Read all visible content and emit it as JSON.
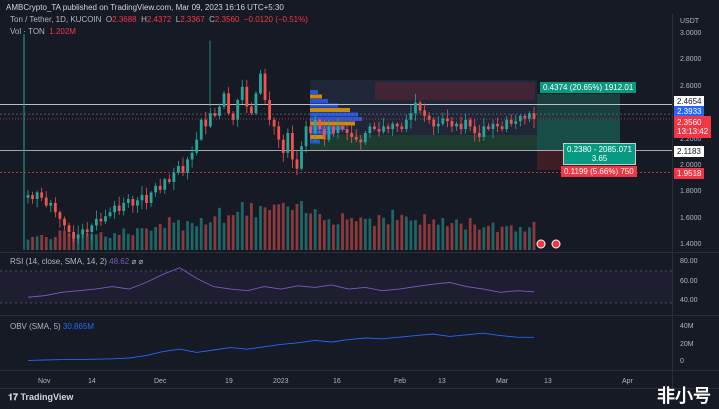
{
  "header": {
    "published": "AMBCrypto_TA published on TradingView.com, Mar 09, 2023 16:16 UTC+5:30"
  },
  "legend": {
    "symbol": "Ton / Tether, 1D, KUCOIN",
    "o_label": "O",
    "o": "2.3688",
    "h_label": "H",
    "h": "2.4372",
    "l_label": "L",
    "l": "2.3367",
    "c_label": "C",
    "c": "2.3560",
    "change": "−0.0120 (−0.51%)",
    "vol_label": "Vol · TON",
    "vol": "1.202M"
  },
  "indicators": {
    "rsi_label": "RSI (14, close, SMA, 14, 2)",
    "rsi_value": "48.62",
    "obv_label": "OBV (SMA, 5)",
    "obv_value": "30.865M"
  },
  "price_axis": {
    "currency": "USDT",
    "ticks": [
      "3.0000",
      "2.8000",
      "2.6000",
      "2.4000",
      "2.2000",
      "2.0000",
      "1.8000",
      "1.6000",
      "1.4000"
    ],
    "tags": {
      "line_top": "2.4654",
      "entry": "2.3933",
      "last": "2.3560",
      "countdown": "13:13:42",
      "line_bottom": "2.1183",
      "stop": "1.9518"
    }
  },
  "rsi_axis": [
    "80.00",
    "60.00",
    "40.00"
  ],
  "obv_axis": [
    "40M",
    "20M",
    "0"
  ],
  "time_axis": [
    "Nov",
    "14",
    "Dec",
    "19",
    "2023",
    "16",
    "Feb",
    "13",
    "Mar",
    "13",
    "Apr"
  ],
  "position": {
    "target": "0.4374 (20.65%) 1912.01",
    "ratio_line1": "0.2380 - 2085.071",
    "ratio_line2": "3.65",
    "stop": "0.1199 (5.66%) 750"
  },
  "footer": {
    "brand": "TradingView",
    "watermark": "非小号"
  },
  "colors": {
    "up": "#26a69a",
    "down": "#ef5350",
    "bg": "#161a25",
    "rsi": "#7e57c2",
    "obv": "#2962ff"
  },
  "chart_data": {
    "type": "candlestick",
    "title": "Ton / Tether, 1D, KUCOIN",
    "ylim": [
      1.35,
      3.05
    ],
    "closes": [
      1.78,
      1.75,
      1.8,
      1.76,
      1.7,
      1.72,
      1.65,
      1.6,
      1.55,
      1.5,
      1.45,
      1.48,
      1.52,
      1.5,
      1.55,
      1.6,
      1.58,
      1.62,
      1.65,
      1.7,
      1.66,
      1.72,
      1.75,
      1.7,
      1.74,
      1.78,
      1.72,
      1.8,
      1.85,
      1.82,
      1.9,
      1.88,
      1.95,
      2.0,
      1.95,
      2.05,
      2.1,
      2.2,
      2.35,
      2.3,
      2.4,
      2.38,
      2.45,
      2.55,
      2.4,
      2.35,
      2.5,
      2.6,
      2.45,
      2.4,
      2.55,
      2.7,
      2.5,
      2.35,
      2.3,
      2.2,
      2.1,
      2.25,
      2.05,
      1.98,
      2.15,
      2.3,
      2.25,
      2.35,
      2.28,
      2.2,
      2.3,
      2.25,
      2.3,
      2.28,
      2.25,
      2.22,
      2.2,
      2.18,
      2.25,
      2.3,
      2.28,
      2.26,
      2.3,
      2.28,
      2.32,
      2.3,
      2.28,
      2.35,
      2.4,
      2.48,
      2.42,
      2.38,
      2.35,
      2.3,
      2.32,
      2.36,
      2.34,
      2.3,
      2.32,
      2.28,
      2.35,
      2.3,
      2.25,
      2.22,
      2.3,
      2.28,
      2.32,
      2.3,
      2.28,
      2.35,
      2.32,
      2.34,
      2.38,
      2.36,
      2.4,
      2.356
    ],
    "volume_levels": [
      0.25,
      0.3,
      0.35,
      0.3,
      0.35,
      0.4,
      0.5,
      0.6,
      0.7,
      0.75,
      0.8,
      0.75,
      0.7,
      0.65,
      0.6,
      0.65,
      0.6,
      0.55,
      0.5,
      0.5,
      0.45,
      0.45
    ],
    "rsi": [
      42,
      44,
      48,
      50,
      52,
      55,
      52,
      60,
      70,
      78,
      65,
      55,
      52,
      50,
      55,
      52,
      56,
      54,
      57,
      52,
      54,
      50,
      52,
      55,
      58,
      60,
      55,
      52,
      48,
      50,
      48.62
    ],
    "obv": [
      2,
      2.5,
      3,
      3,
      3.5,
      4,
      5,
      8,
      13,
      16,
      12,
      15,
      18,
      16,
      19,
      22,
      24,
      27,
      25,
      28,
      30,
      29,
      31,
      33,
      35,
      32,
      34,
      36,
      33,
      31,
      30.865
    ]
  }
}
